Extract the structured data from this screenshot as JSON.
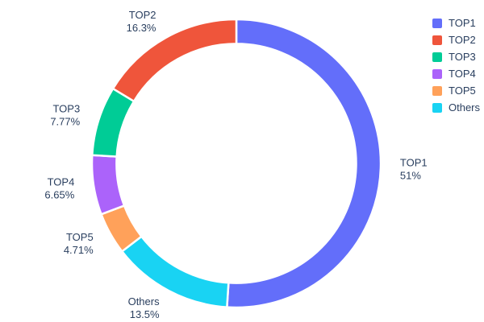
{
  "chart": {
    "background": "#ffffff",
    "font_color": "#2a3f5f"
  },
  "chart_data": {
    "type": "pie",
    "hole": 0.83,
    "title": "",
    "legend_position": "top-right",
    "slices": [
      {
        "label": "TOP1",
        "value": 51,
        "pct_label": "51%",
        "color": "#636EFA"
      },
      {
        "label": "TOP2",
        "value": 16.3,
        "pct_label": "16.3%",
        "color": "#EF553B"
      },
      {
        "label": "TOP3",
        "value": 7.77,
        "pct_label": "7.77%",
        "color": "#00CC96"
      },
      {
        "label": "TOP4",
        "value": 6.65,
        "pct_label": "6.65%",
        "color": "#AB63FA"
      },
      {
        "label": "TOP5",
        "value": 4.71,
        "pct_label": "4.71%",
        "color": "#FFA15A"
      },
      {
        "label": "Others",
        "value": 13.5,
        "pct_label": "13.5%",
        "color": "#19D3F3"
      }
    ]
  }
}
